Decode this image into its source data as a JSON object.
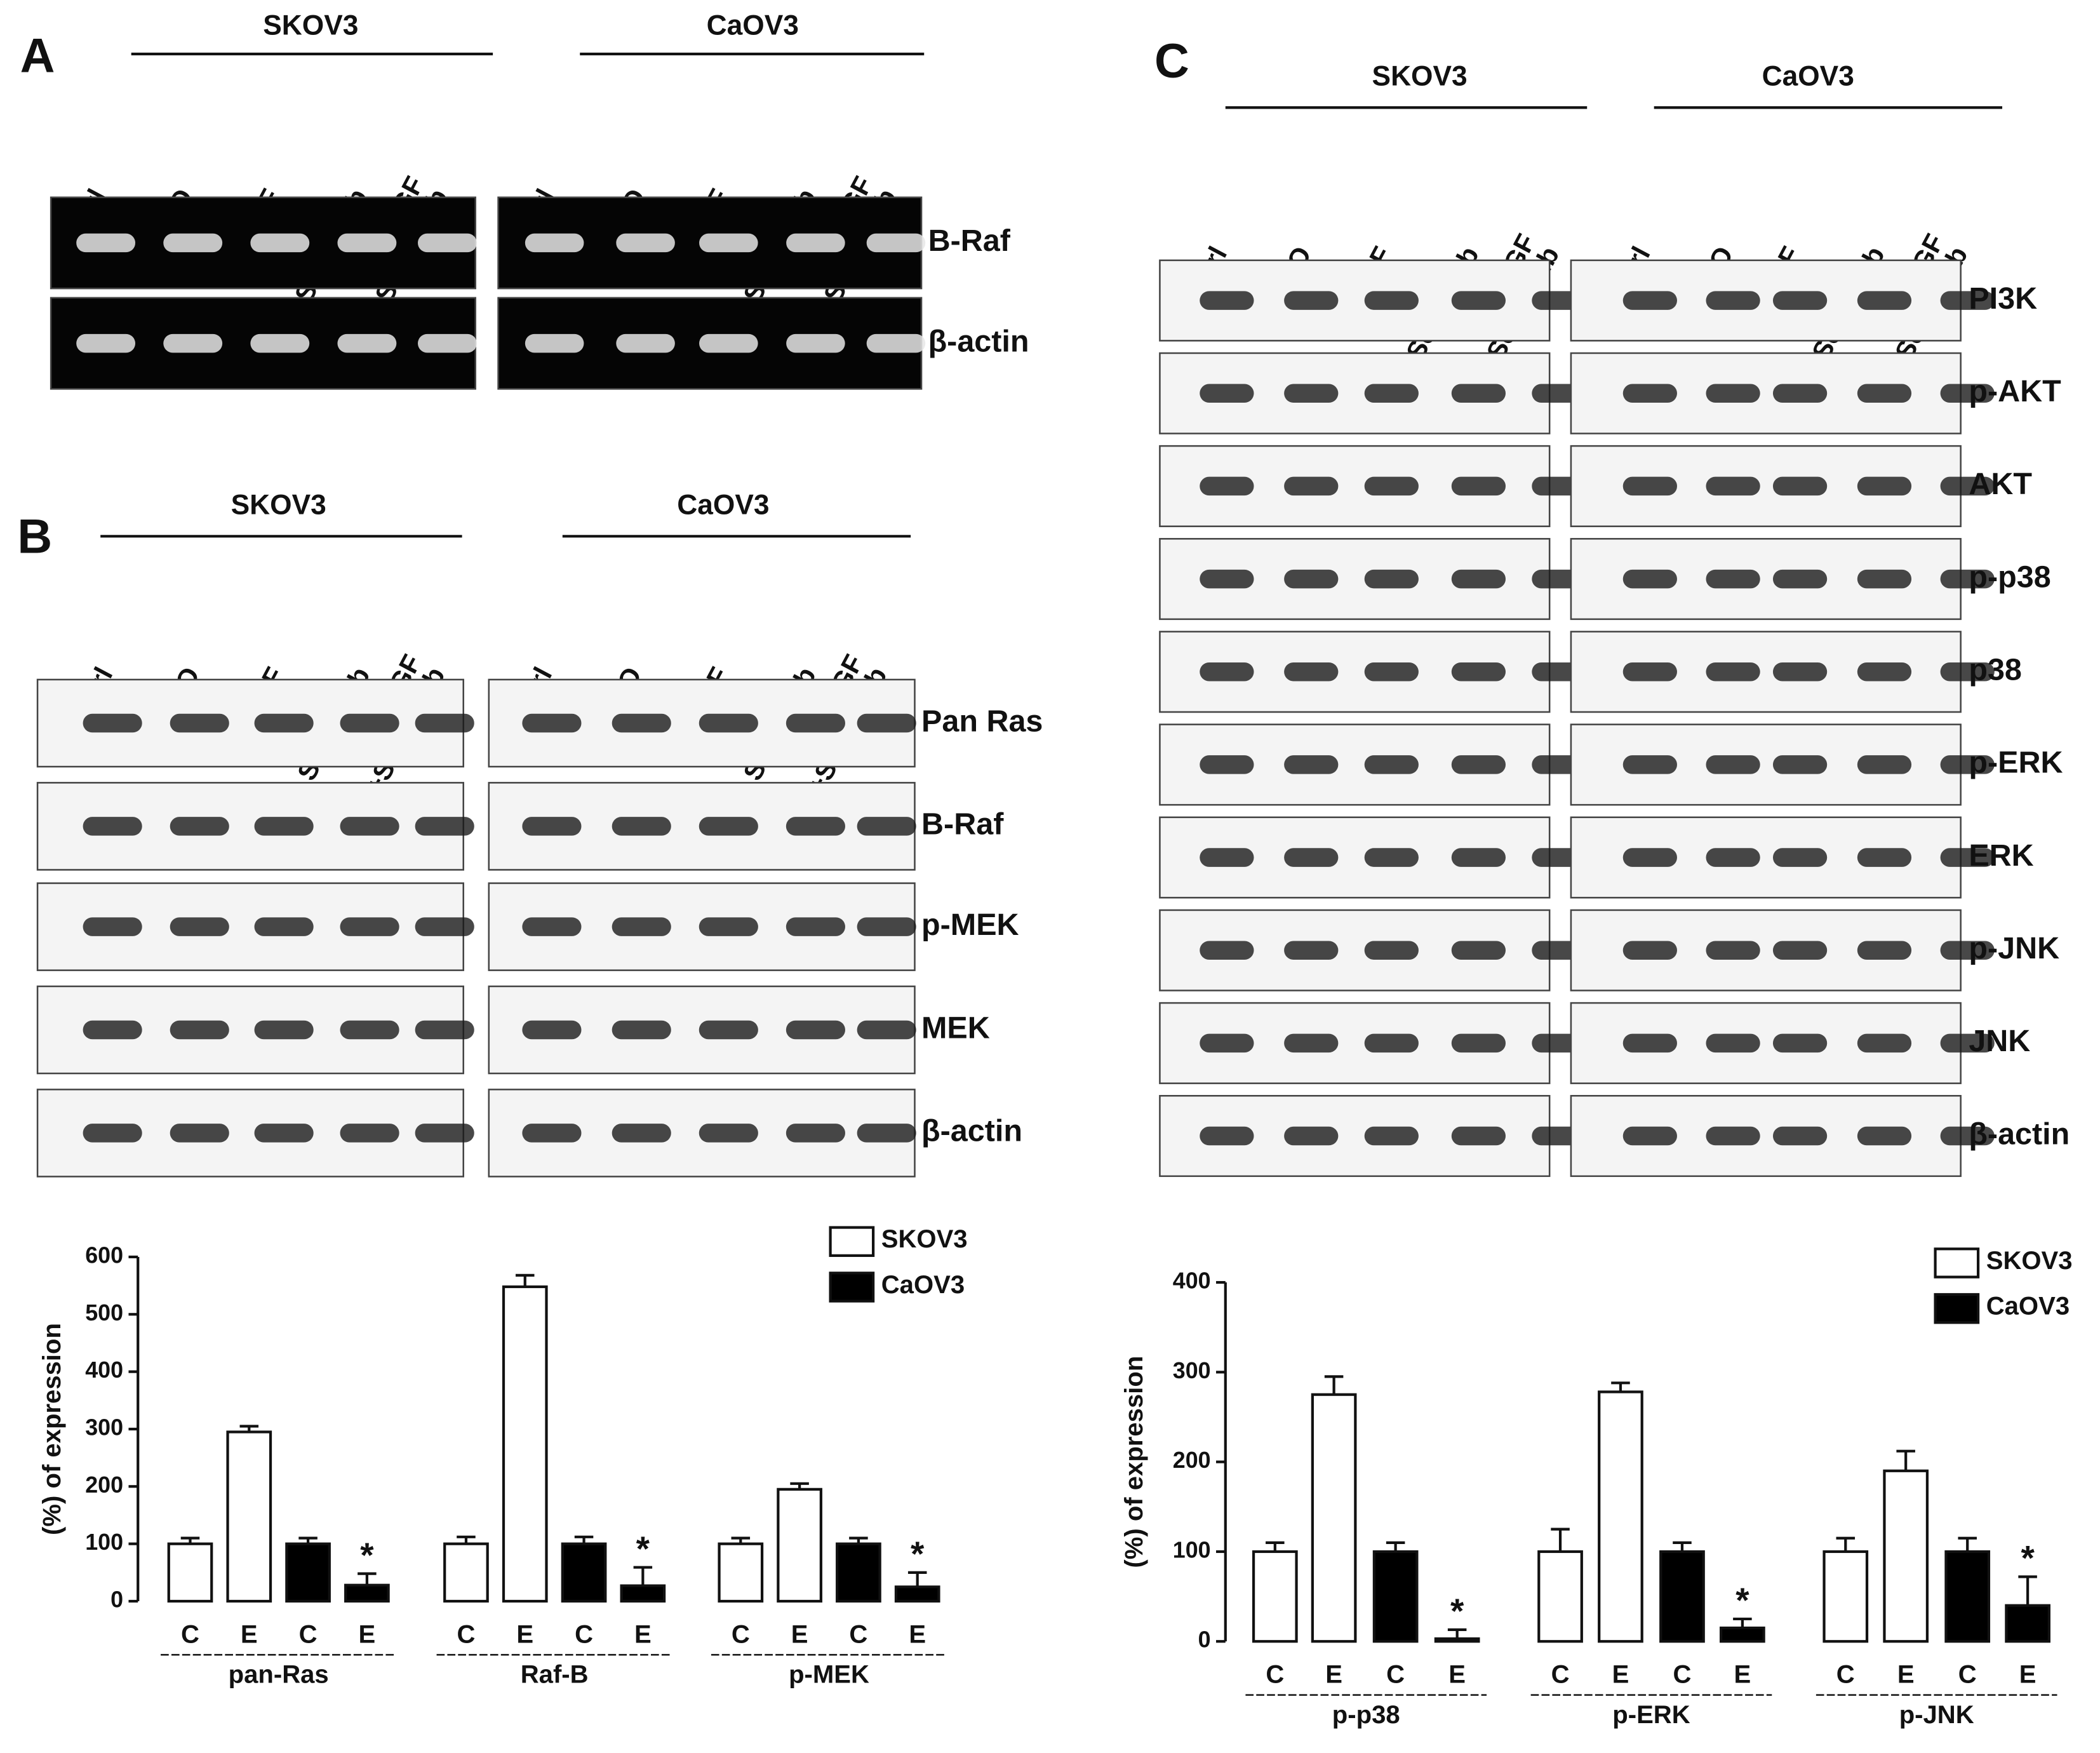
{
  "lanes": [
    [
      "Ctrl"
    ],
    [
      "DMSO"
    ],
    [
      "EGF"
    ],
    [
      "Sorafenib"
    ],
    [
      "EGF",
      "+Sorafenib"
    ]
  ],
  "cell_lines": [
    "SKOV3",
    "CaOV3"
  ],
  "panels": [
    {
      "label": "A",
      "proteins": [
        "B-Raf",
        "β-actin"
      ]
    },
    {
      "label": "B",
      "proteins": [
        "Pan Ras",
        "B-Raf",
        "p-MEK",
        "MEK",
        "β-actin"
      ]
    },
    {
      "label": "C",
      "proteins": [
        "PI3K",
        "p-AKT",
        "AKT",
        "p-p38",
        "p38",
        "p-ERK",
        "ERK",
        "p-JNK",
        "JNK",
        "β-actin"
      ]
    }
  ],
  "chart_data": [
    {
      "type": "bar",
      "ylabel": "(%) of expression",
      "groups": [
        "pan-Ras",
        "Raf-B",
        "p-MEK"
      ],
      "bar_labels": [
        "C",
        "E"
      ],
      "series": [
        {
          "name": "SKOV3",
          "color": "#ffffff",
          "values": [
            100,
            295,
            100,
            548,
            100,
            195
          ],
          "errors": [
            10,
            10,
            12,
            20,
            10,
            10
          ]
        },
        {
          "name": "CaOV3",
          "color": "#000000",
          "values": [
            100,
            28,
            100,
            27,
            100,
            25
          ],
          "errors": [
            10,
            20,
            12,
            32,
            10,
            25
          ]
        }
      ],
      "annotation": "*",
      "ylim": [
        0,
        600
      ],
      "yticks": [
        0,
        100,
        200,
        300,
        400,
        500,
        600
      ]
    },
    {
      "type": "bar",
      "ylabel": "(%) of expression",
      "groups": [
        "p-p38",
        "p-ERK",
        "p-JNK"
      ],
      "bar_labels": [
        "C",
        "E"
      ],
      "series": [
        {
          "name": "SKOV3",
          "color": "#ffffff",
          "values": [
            100,
            275,
            100,
            278,
            100,
            190
          ],
          "errors": [
            10,
            20,
            25,
            10,
            15,
            22
          ]
        },
        {
          "name": "CaOV3",
          "color": "#000000",
          "values": [
            100,
            3,
            100,
            15,
            100,
            40
          ],
          "errors": [
            10,
            10,
            10,
            10,
            15,
            32
          ]
        }
      ],
      "annotation": "*",
      "ylim": [
        0,
        400
      ],
      "yticks": [
        0,
        100,
        200,
        300,
        400
      ]
    }
  ]
}
